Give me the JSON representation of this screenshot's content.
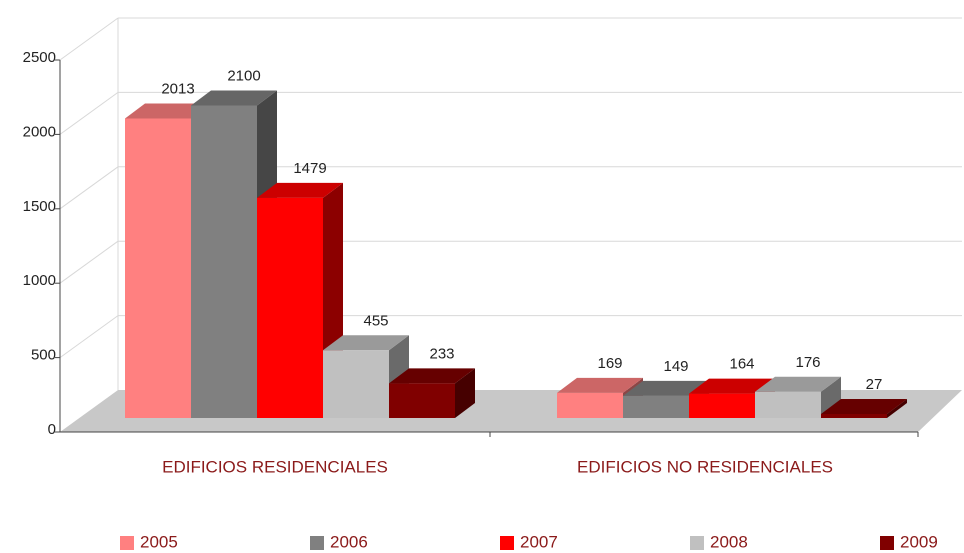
{
  "chart_data": {
    "type": "bar3d",
    "categories": [
      "EDIFICIOS RESIDENCIALES",
      "EDIFICIOS NO RESIDENCIALES"
    ],
    "series": [
      {
        "name": "2005",
        "color": "#ff8080",
        "values": [
          2013,
          169
        ]
      },
      {
        "name": "2006",
        "color": "#808080",
        "values": [
          2100,
          149
        ]
      },
      {
        "name": "2007",
        "color": "#ff0000",
        "values": [
          1479,
          164
        ]
      },
      {
        "name": "2008",
        "color": "#c0c0c0",
        "values": [
          455,
          176
        ]
      },
      {
        "name": "2009",
        "color": "#800000",
        "values": [
          233,
          27
        ]
      }
    ],
    "ylim": [
      0,
      2500
    ],
    "yticks": [
      0,
      500,
      1000,
      1500,
      2000,
      2500
    ],
    "grid": true
  }
}
